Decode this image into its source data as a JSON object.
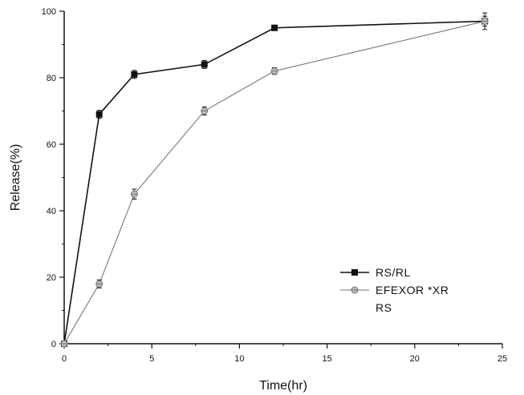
{
  "chart_data": {
    "type": "line",
    "xlabel": "Time(hr)",
    "ylabel": "Release(%)",
    "xlim": [
      0,
      25
    ],
    "ylim": [
      0,
      100
    ],
    "xticks": [
      0,
      5,
      10,
      15,
      20,
      25
    ],
    "yticks": [
      0,
      20,
      40,
      60,
      80,
      100
    ],
    "grid": false,
    "legend_position": "bottom-right",
    "series": [
      {
        "name": "RS/RL",
        "marker": "square",
        "color": "#111111",
        "x": [
          0,
          2,
          4,
          8,
          12,
          24
        ],
        "y": [
          0,
          69,
          81,
          84,
          95,
          97
        ],
        "err": [
          0,
          1.2,
          1.2,
          1.2,
          0.8,
          1.5
        ]
      },
      {
        "name": "EFEXOR *XR RS",
        "name_lines": [
          "EFEXOR *XR",
          "RS"
        ],
        "marker": "circle",
        "color": "#777777",
        "x": [
          0,
          2,
          4,
          8,
          12,
          24
        ],
        "y": [
          0,
          18,
          45,
          70,
          82,
          97
        ],
        "err": [
          0,
          1.2,
          1.5,
          1.2,
          1.0,
          2.5
        ]
      }
    ]
  }
}
